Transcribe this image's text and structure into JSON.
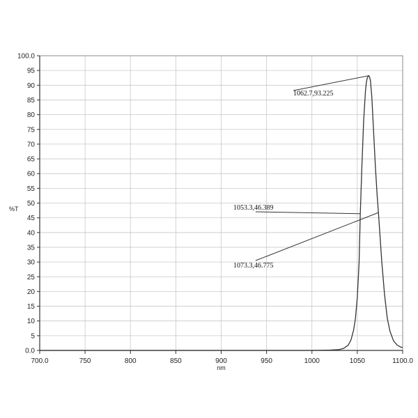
{
  "chart_data": {
    "type": "line",
    "title": "",
    "xlabel": "nm",
    "ylabel": "%T",
    "xlim": [
      700,
      1100
    ],
    "ylim": [
      0,
      100
    ],
    "grid": true,
    "x_ticks": [
      700,
      750,
      800,
      850,
      900,
      950,
      1000,
      1050,
      1100
    ],
    "x_tick_labels": [
      "700.0",
      "750",
      "800",
      "850",
      "900",
      "950",
      "1000",
      "1050",
      "1100.0"
    ],
    "y_ticks": [
      0,
      5,
      10,
      15,
      20,
      25,
      30,
      35,
      40,
      45,
      50,
      55,
      60,
      65,
      70,
      75,
      80,
      85,
      90,
      95,
      100
    ],
    "y_tick_labels": [
      "0.0",
      "5",
      "10",
      "15",
      "20",
      "25",
      "30",
      "35",
      "40",
      "45",
      "50",
      "55",
      "60",
      "65",
      "70",
      "75",
      "80",
      "85",
      "90",
      "95",
      "100.0"
    ],
    "series": [
      {
        "x": [
          700,
          900,
          1000,
          1020,
          1030,
          1035,
          1040,
          1043,
          1046,
          1048,
          1050,
          1052,
          1053.3,
          1055,
          1057,
          1059,
          1060,
          1061,
          1062,
          1062.7,
          1063.5,
          1064.5,
          1066,
          1068,
          1070,
          1072,
          1073.3,
          1075,
          1077,
          1080,
          1083,
          1086,
          1090,
          1094,
          1098,
          1100
        ],
        "y": [
          0,
          0,
          0,
          0.1,
          0.3,
          0.7,
          1.8,
          3.5,
          7,
          11,
          18,
          30,
          46.389,
          62,
          78,
          88,
          91,
          92.5,
          93,
          93.225,
          92.8,
          91.5,
          86,
          74,
          62,
          52,
          46.775,
          39,
          30,
          19,
          11,
          6.5,
          3.2,
          1.8,
          1.1,
          1.0
        ]
      }
    ],
    "annotations": [
      {
        "text": "1062.7,93.225",
        "x": 1062.7,
        "y": 93.225
      },
      {
        "text": "1053.3,46.389",
        "x": 1053.3,
        "y": 46.389
      },
      {
        "text": "1073.3,46.775",
        "x": 1073.3,
        "y": 46.775
      }
    ]
  }
}
